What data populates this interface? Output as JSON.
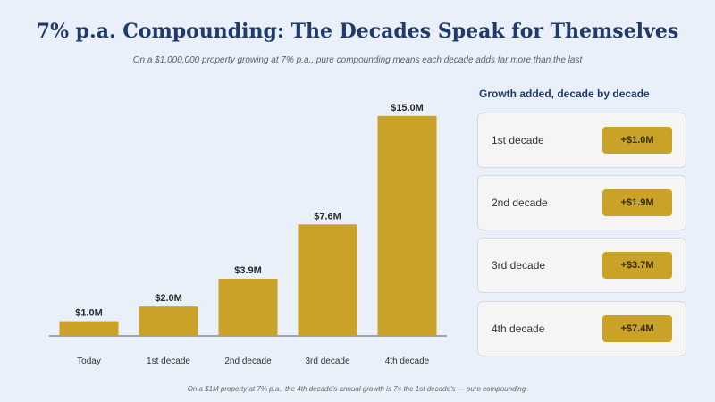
{
  "title": "7% p.a. Compounding: The Decades Speak for Themselves",
  "subtitle": "On a $1,000,000 property growing at 7% p.a., pure compounding means each decade adds far more than the last",
  "chart_data": {
    "type": "bar",
    "categories": [
      "Today",
      "1st decade",
      "2nd decade",
      "3rd decade",
      "4th decade"
    ],
    "values": [
      1.0,
      2.0,
      3.9,
      7.6,
      15.0
    ],
    "value_labels": [
      "$1.0M",
      "$2.0M",
      "$3.9M",
      "$7.6M",
      "$15.0M"
    ],
    "ylim": [
      0,
      15.6
    ],
    "bar_color": "#c9a227",
    "grid": false
  },
  "panel": {
    "heading": "Growth added, decade by decade",
    "cards": [
      {
        "label": "1st decade",
        "value": "+$1.0M"
      },
      {
        "label": "2nd decade",
        "value": "+$1.9M"
      },
      {
        "label": "3rd decade",
        "value": "+$3.7M"
      },
      {
        "label": "4th decade",
        "value": "+$7.4M"
      }
    ]
  },
  "footnote": "On a $1M property at 7% p.a., the 4th decade's annual growth is 7× the 1st decade's — pure compounding."
}
